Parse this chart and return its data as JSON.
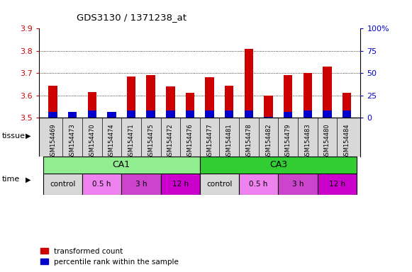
{
  "title": "GDS3130 / 1371238_at",
  "samples": [
    "GSM154469",
    "GSM154473",
    "GSM154470",
    "GSM154474",
    "GSM154471",
    "GSM154475",
    "GSM154472",
    "GSM154476",
    "GSM154477",
    "GSM154481",
    "GSM154478",
    "GSM154482",
    "GSM154479",
    "GSM154483",
    "GSM154480",
    "GSM154484"
  ],
  "red_values": [
    3.645,
    3.525,
    3.615,
    3.522,
    3.685,
    3.692,
    3.64,
    3.612,
    3.682,
    3.645,
    3.81,
    3.6,
    3.692,
    3.7,
    3.73,
    3.612
  ],
  "blue_values_pct": [
    7,
    7,
    8,
    7,
    8,
    8,
    8,
    8,
    8,
    8,
    8,
    1,
    7,
    8,
    8,
    8
  ],
  "ymin": 3.5,
  "ymax": 3.9,
  "yticks_left": [
    3.5,
    3.6,
    3.7,
    3.8,
    3.9
  ],
  "yticks_right": [
    0,
    25,
    50,
    75,
    100
  ],
  "bar_width": 0.45,
  "bar_color_red": "#cc0000",
  "bar_color_blue": "#0000cc",
  "background_color": "#ffffff",
  "grid_color": "#000000",
  "tissue_ca1_color": "#90EE90",
  "tissue_ca3_color": "#32CD32",
  "time_colors": [
    "#d8d8d8",
    "#ee82ee",
    "#cc44cc",
    "#cc00cc"
  ],
  "legend_red": "transformed count",
  "legend_blue": "percentile rank within the sample"
}
